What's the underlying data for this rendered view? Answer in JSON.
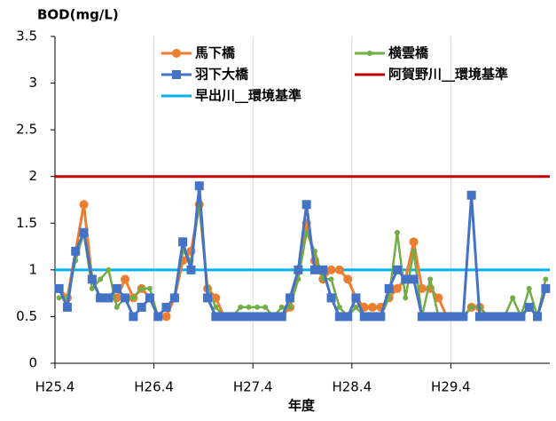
{
  "chart_data": {
    "type": "line",
    "title": "BOD(mg/L)",
    "x_label": "年度",
    "categories": [
      "H25.4",
      null,
      null,
      null,
      null,
      null,
      null,
      null,
      null,
      null,
      null,
      null,
      "H26.4",
      null,
      null,
      null,
      null,
      null,
      null,
      null,
      null,
      null,
      null,
      null,
      "H27.4",
      null,
      null,
      null,
      null,
      null,
      null,
      null,
      null,
      null,
      null,
      null,
      "H28.4",
      null,
      null,
      null,
      null,
      null,
      null,
      null,
      null,
      null,
      null,
      null,
      "H29.4",
      null,
      null,
      null,
      null,
      null,
      null,
      null,
      null,
      null,
      null,
      null
    ],
    "ylim": [
      0,
      3.5
    ],
    "yticks": [
      0,
      0.5,
      1,
      1.5,
      2,
      2.5,
      3,
      3.5
    ],
    "grid": "x",
    "series": [
      {
        "name": "馬下橋",
        "color": "#ed7d31",
        "marker": "circle",
        "values": [
          0.8,
          0.7,
          1.2,
          1.7,
          0.9,
          0.7,
          0.7,
          0.7,
          0.9,
          0.7,
          0.8,
          0.7,
          0.5,
          0.5,
          0.7,
          1.1,
          1.2,
          1.7,
          0.8,
          0.7,
          0.5,
          0.5,
          0.5,
          0.5,
          0.5,
          0.5,
          0.5,
          0.5,
          0.6,
          1.0,
          1.5,
          1.1,
          0.9,
          1.0,
          1.0,
          0.9,
          0.7,
          0.6,
          0.6,
          0.6,
          0.7,
          0.8,
          0.9,
          1.3,
          0.8,
          0.8,
          0.7,
          0.5,
          0.5,
          0.5,
          0.6,
          0.6,
          0.5,
          0.5,
          0.5,
          0.5,
          0.5,
          0.6,
          0.5,
          0.8
        ]
      },
      {
        "name": "横雲橋",
        "color": "#70ad47",
        "marker": "dot",
        "values": [
          0.7,
          0.7,
          1.1,
          1.4,
          0.8,
          0.9,
          1.0,
          0.6,
          0.7,
          0.7,
          0.8,
          0.8,
          0.5,
          0.6,
          0.7,
          1.2,
          1.1,
          1.7,
          0.8,
          0.6,
          0.5,
          0.5,
          0.6,
          0.6,
          0.6,
          0.6,
          0.5,
          0.6,
          0.6,
          0.9,
          1.4,
          1.2,
          0.9,
          0.9,
          0.6,
          0.5,
          0.6,
          0.5,
          0.5,
          0.5,
          0.7,
          1.4,
          0.7,
          1.2,
          0.5,
          0.9,
          0.5,
          0.5,
          0.5,
          0.5,
          0.6,
          0.6,
          0.5,
          0.5,
          0.5,
          0.7,
          0.5,
          0.8,
          0.5,
          0.9
        ]
      },
      {
        "name": "羽下大橋",
        "color": "#4472c4",
        "marker": "square",
        "values": [
          0.8,
          0.6,
          1.2,
          1.4,
          0.9,
          0.7,
          0.7,
          0.8,
          0.7,
          0.5,
          0.6,
          0.7,
          0.5,
          0.6,
          0.7,
          1.3,
          1.0,
          1.9,
          0.7,
          0.5,
          0.5,
          0.5,
          0.5,
          0.5,
          0.5,
          0.5,
          0.5,
          0.5,
          0.7,
          1.0,
          1.7,
          1.0,
          1.0,
          0.7,
          0.5,
          0.5,
          0.7,
          0.5,
          0.5,
          0.5,
          0.8,
          1.0,
          0.9,
          0.9,
          0.5,
          0.5,
          0.5,
          0.5,
          0.5,
          0.5,
          1.8,
          0.5,
          0.5,
          0.5,
          0.5,
          0.5,
          0.5,
          0.6,
          0.5,
          0.8
        ]
      }
    ],
    "reference_lines": [
      {
        "name": "阿賀野川__環境基準",
        "color": "#c00000",
        "value": 2
      },
      {
        "name": "早出川__環境基準",
        "color": "#00b0f0",
        "value": 1
      }
    ]
  }
}
